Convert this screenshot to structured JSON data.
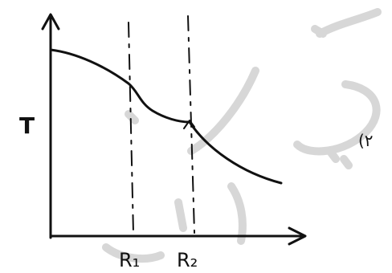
{
  "axis_label_y": "T",
  "marker_1_label": "R₁",
  "marker_2_label": "R₂",
  "side_label": "(۲",
  "colors": {
    "ink": "#111111",
    "watermark": "#d7d7d7",
    "background": "#ffffff"
  }
}
